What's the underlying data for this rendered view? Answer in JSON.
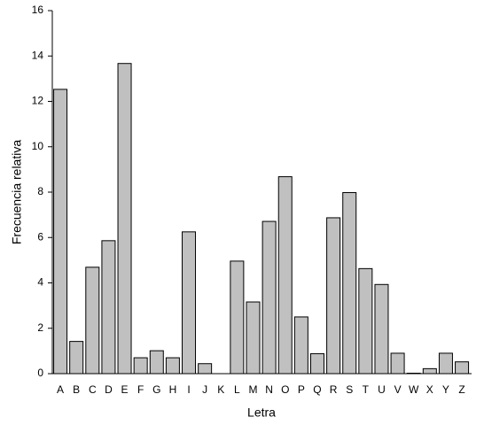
{
  "chart_data": {
    "type": "bar",
    "x_label": "Letra",
    "y_label": "Frecuencia relativa",
    "categories": [
      "A",
      "B",
      "C",
      "D",
      "E",
      "F",
      "G",
      "H",
      "I",
      "J",
      "K",
      "L",
      "M",
      "N",
      "O",
      "P",
      "Q",
      "R",
      "S",
      "T",
      "U",
      "V",
      "W",
      "X",
      "Y",
      "Z"
    ],
    "values": [
      12.53,
      1.42,
      4.69,
      5.86,
      13.67,
      0.7,
      1.01,
      0.7,
      6.25,
      0.44,
      0,
      4.96,
      3.16,
      6.71,
      8.68,
      2.5,
      0.88,
      6.87,
      7.98,
      4.63,
      3.93,
      0.9,
      0.02,
      0.22,
      0.9,
      0.52
    ],
    "color": "#c0c0c0",
    "ylim": [
      0,
      16
    ],
    "yticks": [
      0,
      2,
      4,
      6,
      8,
      10,
      12,
      14,
      16
    ],
    "grid": false
  }
}
